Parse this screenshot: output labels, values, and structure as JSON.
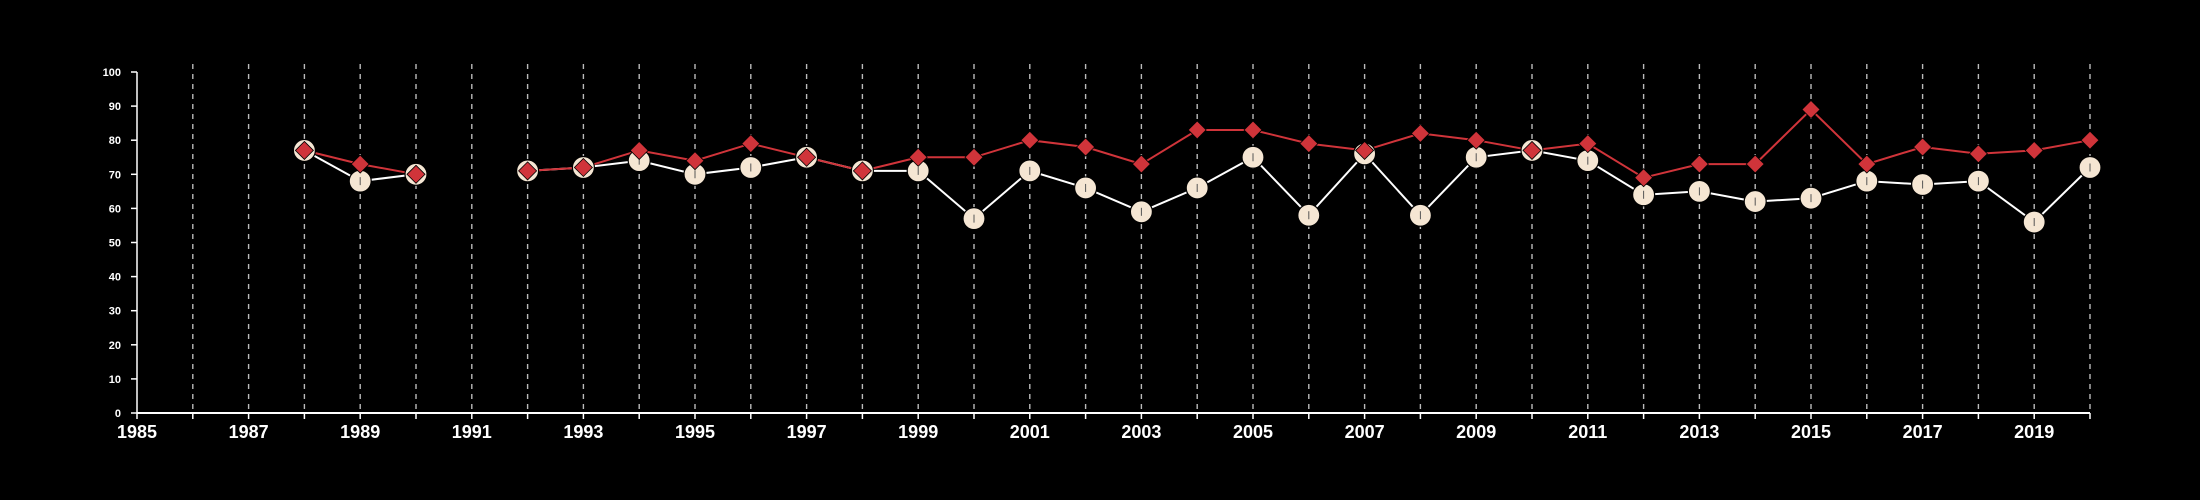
{
  "chart_data": {
    "type": "line",
    "title": "",
    "xlabel": "",
    "ylabel": "",
    "xlim": [
      1985,
      2020
    ],
    "ylim": [
      0,
      100
    ],
    "y_ticks": [
      0,
      10,
      20,
      30,
      40,
      50,
      60,
      70,
      80,
      90,
      100
    ],
    "x_tick_labels": [
      "1985",
      "1987",
      "1989",
      "1991",
      "1993",
      "1995",
      "1997",
      "1999",
      "2001",
      "2003",
      "2005",
      "2007",
      "2009",
      "2011",
      "2013",
      "2015",
      "2017",
      "2019"
    ],
    "grid": "vertical dashed lines at every year",
    "series": [
      {
        "marker": "diamond",
        "color": "#d0343a",
        "points": [
          [
            1988,
            77
          ],
          [
            1989,
            73
          ],
          [
            1990,
            70
          ],
          [
            1992,
            71
          ],
          [
            1993,
            72
          ],
          [
            1994,
            77
          ],
          [
            1995,
            74
          ],
          [
            1996,
            79
          ],
          [
            1997,
            75
          ],
          [
            1998,
            71
          ],
          [
            1999,
            75
          ],
          [
            2000,
            75
          ],
          [
            2001,
            80
          ],
          [
            2002,
            78
          ],
          [
            2003,
            73
          ],
          [
            2004,
            83
          ],
          [
            2005,
            83
          ],
          [
            2006,
            79
          ],
          [
            2007,
            77
          ],
          [
            2008,
            82
          ],
          [
            2009,
            80
          ],
          [
            2010,
            77
          ],
          [
            2011,
            79
          ],
          [
            2012,
            69
          ],
          [
            2013,
            73
          ],
          [
            2014,
            73
          ],
          [
            2015,
            89
          ],
          [
            2016,
            73
          ],
          [
            2017,
            78
          ],
          [
            2018,
            76
          ],
          [
            2019,
            77
          ],
          [
            2020,
            80
          ]
        ]
      },
      {
        "marker": "circle",
        "color": "#f5e6d3",
        "points": [
          [
            1988,
            77
          ],
          [
            1989,
            68
          ],
          [
            1990,
            70
          ],
          [
            1992,
            71
          ],
          [
            1993,
            72
          ],
          [
            1994,
            74
          ],
          [
            1995,
            70
          ],
          [
            1996,
            72
          ],
          [
            1997,
            75
          ],
          [
            1998,
            71
          ],
          [
            1999,
            71
          ],
          [
            2000,
            57
          ],
          [
            2001,
            71
          ],
          [
            2002,
            66
          ],
          [
            2003,
            59
          ],
          [
            2004,
            66
          ],
          [
            2005,
            75
          ],
          [
            2006,
            58
          ],
          [
            2007,
            76
          ],
          [
            2008,
            58
          ],
          [
            2009,
            75
          ],
          [
            2010,
            77
          ],
          [
            2011,
            74
          ],
          [
            2012,
            64
          ],
          [
            2013,
            65
          ],
          [
            2014,
            62
          ],
          [
            2015,
            63
          ],
          [
            2016,
            68
          ],
          [
            2017,
            67
          ],
          [
            2018,
            68
          ],
          [
            2019,
            56
          ],
          [
            2020,
            72
          ]
        ]
      }
    ]
  },
  "colors": {
    "background": "#000000",
    "axis": "#ffffff",
    "grid": "#bbbbbb",
    "line_circle_series": "#ffffff",
    "marker_circle_fill": "#f5e6d3",
    "marker_diamond_fill": "#d0343a"
  }
}
